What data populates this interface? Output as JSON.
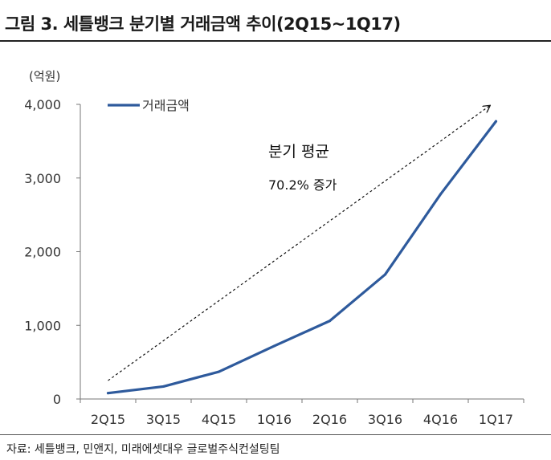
{
  "title": "그림 3. 세틀뱅크 분기별 거래금액 추이(2Q15~1Q17)",
  "source": "자료: 세틀뱅크, 민앤지, 미래에셋대우 글로벌주식컨설팅팀",
  "chart_data": {
    "type": "line",
    "unit_label": "(억원)",
    "categories": [
      "2Q15",
      "3Q15",
      "4Q15",
      "1Q16",
      "2Q16",
      "3Q16",
      "4Q16",
      "1Q17"
    ],
    "series": [
      {
        "name": "거래금액",
        "values": [
          80,
          170,
          370,
          720,
          1060,
          1690,
          2780,
          3770
        ],
        "color": "#2e5a9c"
      }
    ],
    "ylim": [
      0,
      4000
    ],
    "yticks": [
      0,
      1000,
      2000,
      3000,
      4000
    ],
    "ytick_labels": [
      "0",
      "1,000",
      "2,000",
      "3,000",
      "4,000"
    ],
    "legend_position": "top-left",
    "grid": false,
    "annotation": {
      "line1": "분기 평균",
      "line2": "70.2% 증가"
    },
    "trend_arrow": {
      "from": {
        "category": "2Q15",
        "value": 250
      },
      "to": {
        "category": "1Q17",
        "value": 3980
      }
    }
  }
}
